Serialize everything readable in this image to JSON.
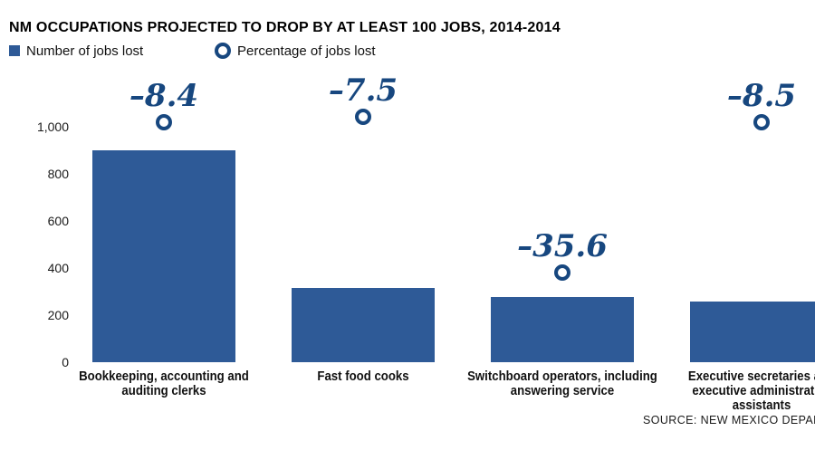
{
  "title": "NM OCCUPATIONS PROJECTED TO DROP BY AT LEAST 100 JOBS, 2014-2014",
  "legend": [
    {
      "label": "Number of jobs lost",
      "swatch": "bar-square",
      "color": "#2e5a97"
    },
    {
      "label": "Percentage of jobs lost",
      "swatch": "ring-circle",
      "color": "#17477f"
    }
  ],
  "chart_data": {
    "type": "bar",
    "categories": [
      "Bookkeeping, accounting and auditing clerks",
      "Fast food cooks",
      "Switchboard operators, including answering service",
      "Executive secretaries and executive administrative assistants"
    ],
    "series": [
      {
        "name": "Number of jobs lost",
        "type": "bar",
        "values": [
          900,
          315,
          277,
          258
        ]
      },
      {
        "name": "Percentage of jobs lost",
        "type": "point",
        "values": [
          -8.4,
          -7.5,
          -35.6,
          -8.5
        ]
      }
    ],
    "annotations": [
      "–8.4",
      "–7.5",
      "–35.6",
      "–8.5"
    ],
    "title": "NM OCCUPATIONS PROJECTED TO DROP BY AT LEAST 100 JOBS, 2014-2014",
    "xlabel": "",
    "ylabel": "",
    "ylim": [
      0,
      1000
    ],
    "yticks": [
      1000,
      800,
      600,
      400,
      200,
      0
    ],
    "ytick_labels": [
      "1,000",
      "800",
      "600",
      "400",
      "200",
      "0"
    ],
    "grid": false,
    "legend_position": "top-left"
  },
  "source": "SOURCE: NEW MEXICO DEPARTMENT OF WORKFORCE SOLUTIONS",
  "colors": {
    "bar": "#2e5a97",
    "accent": "#17477f",
    "text": "#111111",
    "background": "#ffffff"
  }
}
